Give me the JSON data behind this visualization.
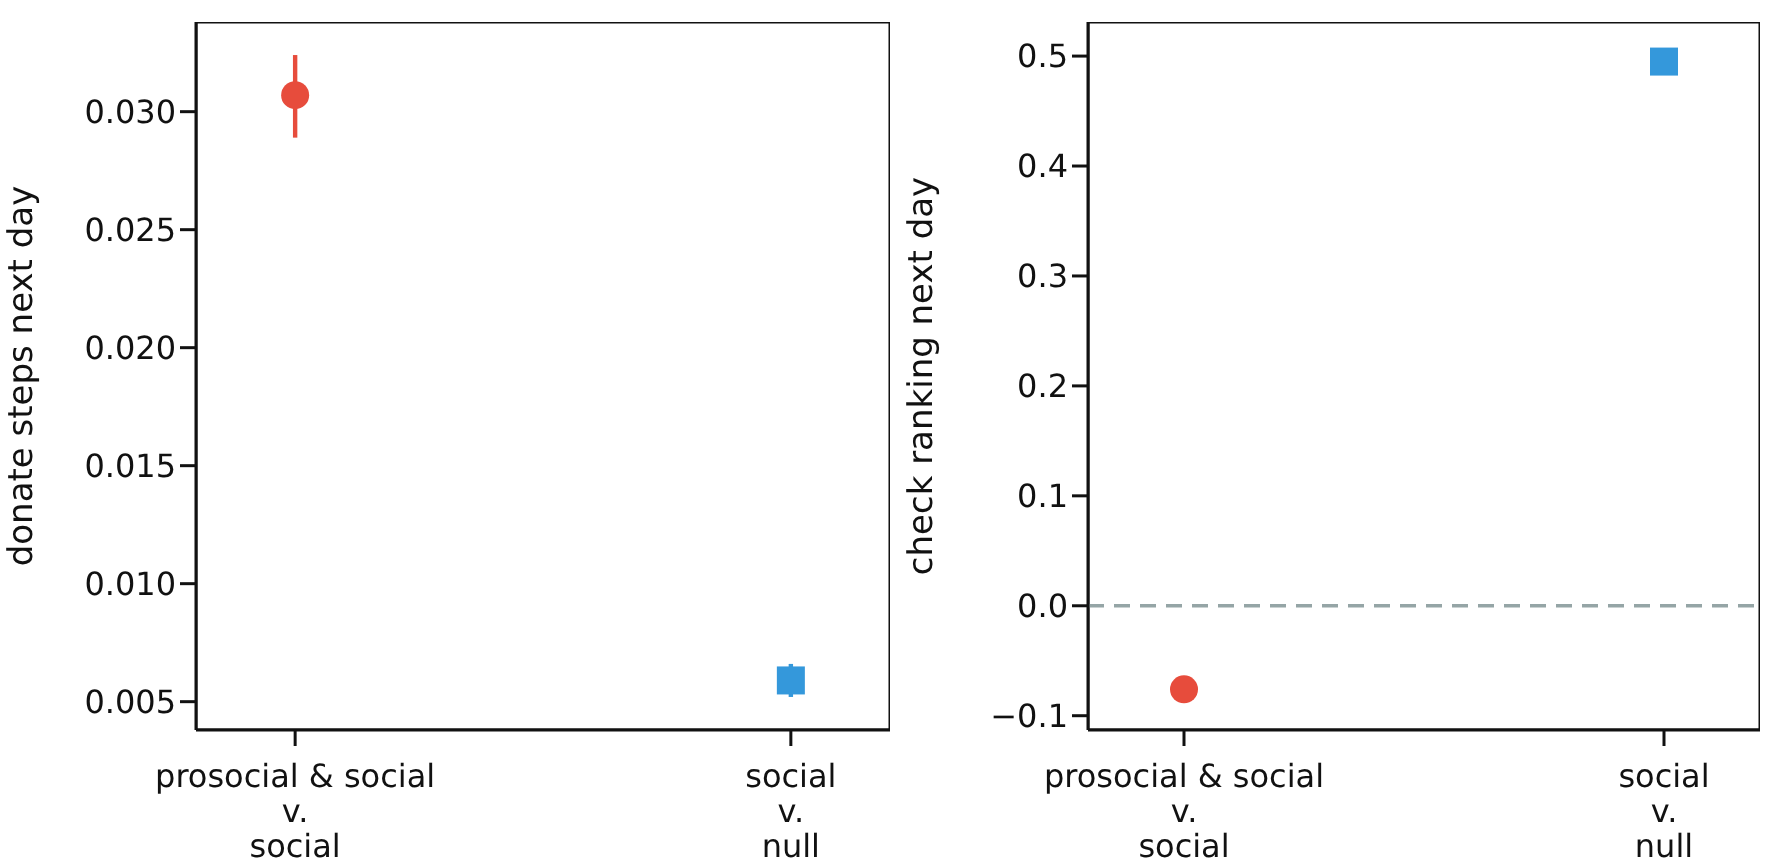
{
  "chart_data": [
    {
      "type": "scatter",
      "ylabel": "donate steps next day",
      "categories": [
        "prosocial & social\nv.\nsocial",
        "social\nv.\nnull"
      ],
      "ylim": [
        0.0038,
        0.0338
      ],
      "yticks": [
        {
          "value": 0.005,
          "label": "0.005"
        },
        {
          "value": 0.01,
          "label": "0.010"
        },
        {
          "value": 0.015,
          "label": "0.015"
        },
        {
          "value": 0.02,
          "label": "0.020"
        },
        {
          "value": 0.025,
          "label": "0.025"
        },
        {
          "value": 0.03,
          "label": "0.030"
        }
      ],
      "grid": false,
      "legend": false,
      "series": [
        {
          "color": "#e74c3c",
          "marker": "circle",
          "values": [
            0.0307,
            null
          ],
          "errors": [
            [
              0.0289,
              0.0324
            ],
            null
          ]
        },
        {
          "color": "#3498db",
          "marker": "square",
          "values": [
            null,
            0.0059
          ],
          "errors": [
            null,
            [
              0.0052,
              0.0066
            ]
          ]
        }
      ]
    },
    {
      "type": "scatter",
      "ylabel": "check ranking next day",
      "categories": [
        "prosocial & social\nv.\nsocial",
        "social\nv.\nnull"
      ],
      "ylim": [
        -0.113,
        0.531
      ],
      "yticks": [
        {
          "value": -0.1,
          "label": "−0.1"
        },
        {
          "value": 0,
          "label": "0.0"
        },
        {
          "value": 0.1,
          "label": "0.1"
        },
        {
          "value": 0.2,
          "label": "0.2"
        },
        {
          "value": 0.3,
          "label": "0.3"
        },
        {
          "value": 0.4,
          "label": "0.4"
        },
        {
          "value": 0.5,
          "label": "0.5"
        }
      ],
      "grid": false,
      "legend": false,
      "ref_lines": [
        {
          "axis": "y",
          "value": 0,
          "color": "#95a5a6",
          "line_style": "dashed"
        }
      ],
      "series": [
        {
          "color": "#e74c3c",
          "marker": "circle",
          "values": [
            -0.076,
            null
          ]
        },
        {
          "color": "#3498db",
          "marker": "square",
          "values": [
            null,
            0.495
          ]
        }
      ]
    }
  ]
}
